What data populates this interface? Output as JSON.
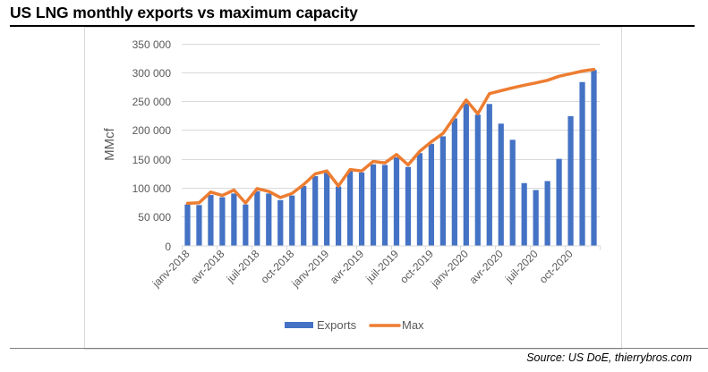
{
  "page": {
    "title": "US LNG monthly exports vs maximum capacity",
    "source": "Source: US DoE, thierrybros.com"
  },
  "colors": {
    "exports": "#4472C4",
    "max": "#ED7D31",
    "grid": "#D9D9D9",
    "text": "#595959"
  },
  "chart_data": {
    "type": "bar",
    "title": "US LNG monthly exports vs maximum capacity",
    "xlabel": "",
    "ylabel": "MMcf",
    "ylim": [
      0,
      350000
    ],
    "yticks": [
      0,
      50000,
      100000,
      150000,
      200000,
      250000,
      300000,
      350000
    ],
    "ytick_labels": [
      "0",
      "50 000",
      "100 000",
      "150 000",
      "200 000",
      "250 000",
      "300 000",
      "350 000"
    ],
    "grid": true,
    "legend_position": "bottom",
    "categories": [
      "janv-2018",
      "févr-2018",
      "mars-2018",
      "avr-2018",
      "mai-2018",
      "juin-2018",
      "juil-2018",
      "août-2018",
      "sept-2018",
      "oct-2018",
      "nov-2018",
      "déc-2018",
      "janv-2019",
      "févr-2019",
      "mars-2019",
      "avr-2019",
      "mai-2019",
      "juin-2019",
      "juil-2019",
      "août-2019",
      "sept-2019",
      "oct-2019",
      "nov-2019",
      "déc-2019",
      "janv-2020",
      "févr-2020",
      "mars-2020",
      "avr-2020",
      "mai-2020",
      "juin-2020",
      "juil-2020",
      "août-2020",
      "sept-2020",
      "oct-2020",
      "nov-2020",
      "déc-2020"
    ],
    "xtick_labels": [
      {
        "index": 0,
        "label": "janv-2018"
      },
      {
        "index": 3,
        "label": "avr-2018"
      },
      {
        "index": 6,
        "label": "juil-2018"
      },
      {
        "index": 9,
        "label": "oct-2018"
      },
      {
        "index": 12,
        "label": "janv-2019"
      },
      {
        "index": 15,
        "label": "avr-2019"
      },
      {
        "index": 18,
        "label": "juil-2019"
      },
      {
        "index": 21,
        "label": "oct-2019"
      },
      {
        "index": 24,
        "label": "janv-2020"
      },
      {
        "index": 27,
        "label": "avr-2020"
      },
      {
        "index": 30,
        "label": "juil-2020"
      },
      {
        "index": 33,
        "label": "oct-2020"
      }
    ],
    "series": [
      {
        "name": "Exports",
        "type": "bar",
        "values": [
          71000,
          70000,
          87500,
          83500,
          90000,
          71000,
          94000,
          90000,
          78500,
          86500,
          103000,
          120000,
          126500,
          102000,
          129000,
          126500,
          140500,
          139500,
          152500,
          136000,
          160000,
          176000,
          189000,
          220000,
          246000,
          226500,
          245000,
          211000,
          183000,
          108000,
          96000,
          111500,
          150000,
          224000,
          283000,
          304000
        ]
      },
      {
        "name": "Max",
        "type": "line",
        "values": [
          73000,
          74000,
          92500,
          86500,
          96000,
          73500,
          98500,
          93500,
          83000,
          90000,
          105500,
          124000,
          129000,
          103000,
          131500,
          129000,
          145500,
          143000,
          157500,
          139500,
          163000,
          179500,
          194000,
          222500,
          252000,
          228000,
          263000,
          268000,
          273000,
          277500,
          281500,
          286000,
          293000,
          297500,
          302000,
          305000
        ]
      }
    ]
  }
}
